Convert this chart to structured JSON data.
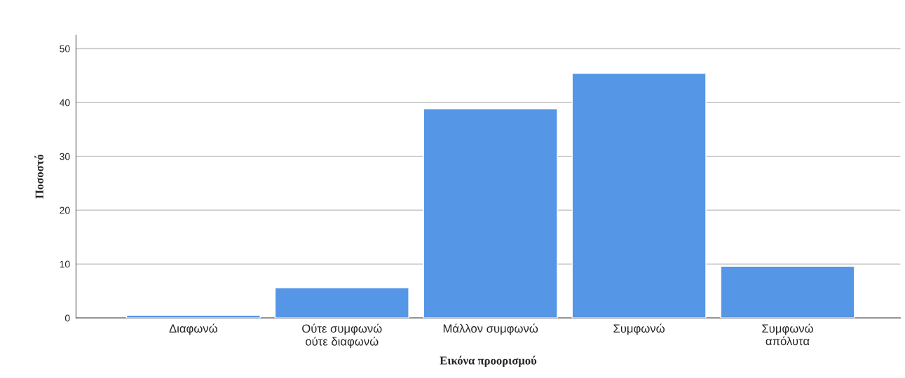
{
  "chart_data": {
    "type": "bar",
    "xlabel": "Εικόνα προορισμού",
    "ylabel": "Ποσοστό",
    "categories": [
      "Διαφωνώ",
      "Ούτε συμφωνώ\nούτε διαφωνώ",
      "Μάλλον συμφωνώ",
      "Συμφωνώ",
      "Συμφωνώ\nαπόλυτα"
    ],
    "values": [
      0.5,
      5.6,
      38.8,
      45.4,
      9.6
    ],
    "color": "#5596e6",
    "ylim": [
      0,
      52.5
    ],
    "yticks": [
      0,
      10,
      20,
      30,
      40,
      50
    ],
    "grid": "y"
  }
}
